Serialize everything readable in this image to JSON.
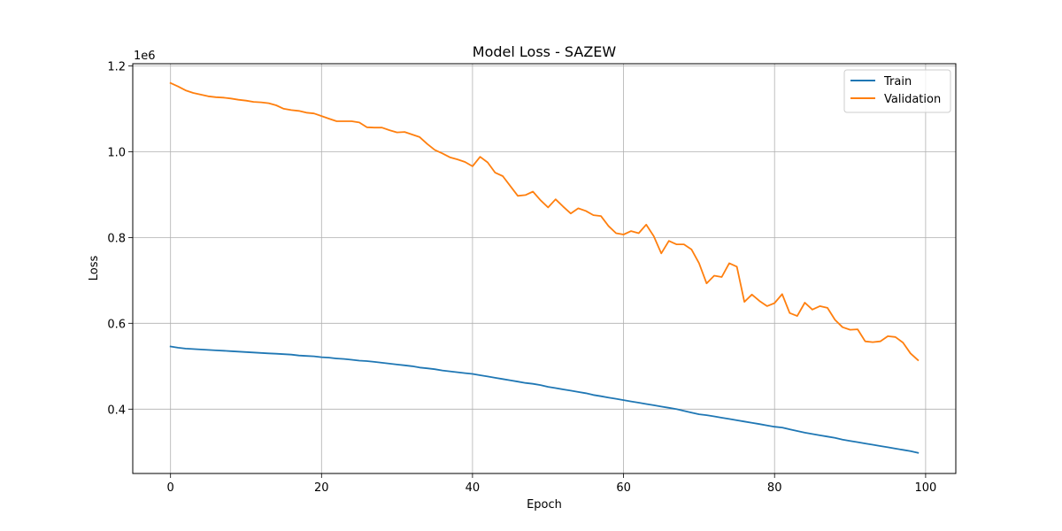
{
  "chart_data": {
    "type": "line",
    "title": "Model Loss - SAZEW",
    "xlabel": "Epoch",
    "ylabel": "Loss",
    "y_scale_label": "1e6",
    "y_scale": 1000000,
    "xlim": [
      -5,
      104
    ],
    "ylim": [
      250000,
      1205000
    ],
    "xticks": [
      0,
      20,
      40,
      60,
      80,
      100
    ],
    "yticks": [
      400000,
      600000,
      800000,
      1000000,
      1200000
    ],
    "ytick_labels": [
      "0.4",
      "0.6",
      "0.8",
      "1.0",
      "1.2"
    ],
    "grid": true,
    "legend_position": "top-right",
    "x": [
      0,
      1,
      2,
      3,
      4,
      5,
      6,
      7,
      8,
      9,
      10,
      11,
      12,
      13,
      14,
      15,
      16,
      17,
      18,
      19,
      20,
      21,
      22,
      23,
      24,
      25,
      26,
      27,
      28,
      29,
      30,
      31,
      32,
      33,
      34,
      35,
      36,
      37,
      38,
      39,
      40,
      41,
      42,
      43,
      44,
      45,
      46,
      47,
      48,
      49,
      50,
      51,
      52,
      53,
      54,
      55,
      56,
      57,
      58,
      59,
      60,
      61,
      62,
      63,
      64,
      65,
      66,
      67,
      68,
      69,
      70,
      71,
      72,
      73,
      74,
      75,
      76,
      77,
      78,
      79,
      80,
      81,
      82,
      83,
      84,
      85,
      86,
      87,
      88,
      89,
      90,
      91,
      92,
      93,
      94,
      95,
      96,
      97,
      98,
      99
    ],
    "series": [
      {
        "name": "Train",
        "color": "#1f77b4",
        "values": [
          546000,
          543000,
          541000,
          540000,
          539000,
          538000,
          537000,
          536000,
          535000,
          534000,
          533000,
          532000,
          531000,
          530000,
          529000,
          528000,
          527000,
          525000,
          524000,
          523000,
          521000,
          520000,
          518000,
          517000,
          515000,
          513000,
          512000,
          510000,
          508000,
          506000,
          504000,
          502000,
          500000,
          497000,
          495000,
          493000,
          490000,
          488000,
          486000,
          484000,
          482000,
          479000,
          476000,
          473000,
          470000,
          467000,
          464000,
          461000,
          459000,
          456000,
          452000,
          449000,
          446000,
          443000,
          440000,
          437000,
          433000,
          430000,
          427000,
          424000,
          421000,
          418000,
          415000,
          412000,
          409000,
          406000,
          403000,
          400000,
          396000,
          392000,
          388000,
          386000,
          383000,
          380000,
          377000,
          374000,
          371000,
          368000,
          365000,
          362000,
          359000,
          357000,
          353000,
          349000,
          345000,
          342000,
          339000,
          336000,
          333000,
          329000,
          326000,
          323000,
          320000,
          317000,
          314000,
          311000,
          308000,
          305000,
          302000,
          298000
        ]
      },
      {
        "name": "Validation",
        "color": "#ff7f0e",
        "values": [
          1160000,
          1152000,
          1143000,
          1137000,
          1133000,
          1129000,
          1127000,
          1126000,
          1124000,
          1121000,
          1119000,
          1116000,
          1115000,
          1113000,
          1108000,
          1100000,
          1097000,
          1095000,
          1091000,
          1089000,
          1083000,
          1077000,
          1071000,
          1071000,
          1071000,
          1068000,
          1057000,
          1056000,
          1056000,
          1050000,
          1045000,
          1046000,
          1040000,
          1034000,
          1018000,
          1004000,
          996000,
          987000,
          982000,
          976000,
          966000,
          988000,
          975000,
          951000,
          943000,
          920000,
          897000,
          899000,
          907000,
          887000,
          870000,
          889000,
          872000,
          856000,
          868000,
          862000,
          852000,
          850000,
          827000,
          810000,
          807000,
          815000,
          810000,
          830000,
          803000,
          763000,
          792000,
          784000,
          784000,
          772000,
          740000,
          693000,
          711000,
          708000,
          740000,
          732000,
          650000,
          667000,
          652000,
          640000,
          647000,
          668000,
          624000,
          617000,
          648000,
          632000,
          640000,
          636000,
          608000,
          591000,
          585000,
          586000,
          558000,
          556000,
          558000,
          570000,
          568000,
          555000,
          530000,
          514000
        ]
      }
    ]
  }
}
